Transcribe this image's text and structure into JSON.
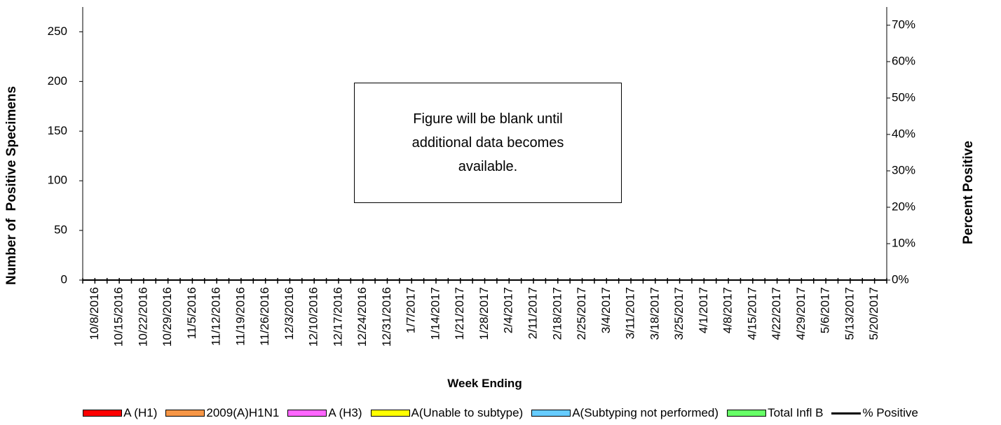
{
  "chart_data": {
    "type": "bar",
    "stacked": true,
    "categories": [
      "10/8/2016",
      "10/15/2016",
      "10/22/2016",
      "10/29/2016",
      "11/5/2016",
      "11/12/2016",
      "11/19/2016",
      "11/26/2016",
      "12/3/2016",
      "12/10/2016",
      "12/17/2016",
      "12/24/2016",
      "12/31/2016",
      "1/7/2017",
      "1/14/2017",
      "1/21/2017",
      "1/28/2017",
      "2/4/2017",
      "2/11/2017",
      "2/18/2017",
      "2/25/2017",
      "3/4/2017",
      "3/11/2017",
      "3/18/2017",
      "3/25/2017",
      "4/1/2017",
      "4/8/2017",
      "4/15/2017",
      "4/22/2017",
      "4/29/2017",
      "5/6/2017",
      "5/13/2017",
      "5/20/2017"
    ],
    "x_label": "Week Ending",
    "y_label": "Number of  Positive Specimens",
    "y2_label": "Percent Positive",
    "ylim": [
      0,
      275
    ],
    "yticks": [
      0,
      50,
      100,
      150,
      200,
      250
    ],
    "y2lim": [
      0,
      75
    ],
    "y2ticks": [
      {
        "value": 0,
        "label": "0%"
      },
      {
        "value": 10,
        "label": "10%"
      },
      {
        "value": 20,
        "label": "20%"
      },
      {
        "value": 30,
        "label": "30%"
      },
      {
        "value": 40,
        "label": "40%"
      },
      {
        "value": 50,
        "label": "50%"
      },
      {
        "value": 60,
        "label": "60%"
      },
      {
        "value": 70,
        "label": "70%"
      }
    ],
    "series": [
      {
        "name": "A (H1)",
        "color": "#ff0000"
      },
      {
        "name": "2009(A)H1N1",
        "color": "#f79646"
      },
      {
        "name": "A (H3)",
        "color": "#ff66ff"
      },
      {
        "name": "A(Unable to subtype)",
        "color": "#ffff00"
      },
      {
        "name": "A(Subtyping not performed)",
        "color": "#66ccff"
      },
      {
        "name": "Total Infl B",
        "color": "#66ff66"
      },
      {
        "name": "% Positive",
        "color": "#000000",
        "type": "line",
        "axis": "y2"
      }
    ],
    "annotation": "Figure will be blank until additional data becomes available.",
    "grid": false
  }
}
